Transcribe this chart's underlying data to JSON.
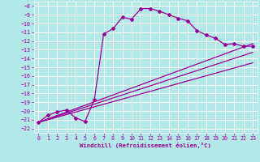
{
  "xlabel": "Windchill (Refroidissement éolien,°C)",
  "background_color": "#b2e8e8",
  "grid_color": "#ffffff",
  "line_color": "#990099",
  "xlim": [
    -0.5,
    23.5
  ],
  "ylim": [
    -22.5,
    -7.5
  ],
  "xticks": [
    0,
    1,
    2,
    3,
    4,
    5,
    6,
    7,
    8,
    9,
    10,
    11,
    12,
    13,
    14,
    15,
    16,
    17,
    18,
    19,
    20,
    21,
    22,
    23
  ],
  "yticks": [
    -8,
    -9,
    -10,
    -11,
    -12,
    -13,
    -14,
    -15,
    -16,
    -17,
    -18,
    -19,
    -20,
    -21,
    -22
  ],
  "curve1_x": [
    0,
    1,
    2,
    3,
    4,
    5,
    6,
    7,
    8,
    9,
    10,
    11,
    12,
    13,
    14,
    15,
    16,
    17,
    18,
    19,
    20,
    21,
    22,
    23
  ],
  "curve1_y": [
    -21.3,
    -20.5,
    -20.1,
    -19.9,
    -20.8,
    -21.2,
    -18.7,
    -11.2,
    -10.6,
    -9.3,
    -9.5,
    -8.3,
    -8.3,
    -8.6,
    -9.0,
    -9.4,
    -9.7,
    -10.8,
    -11.3,
    -11.7,
    -12.4,
    -12.3,
    -12.6,
    -12.6
  ],
  "line1_x": [
    0,
    23
  ],
  "line1_y": [
    -21.3,
    -12.3
  ],
  "line2_x": [
    0,
    23
  ],
  "line2_y": [
    -21.3,
    -13.3
  ],
  "line3_x": [
    0,
    23
  ],
  "line3_y": [
    -21.3,
    -14.5
  ]
}
